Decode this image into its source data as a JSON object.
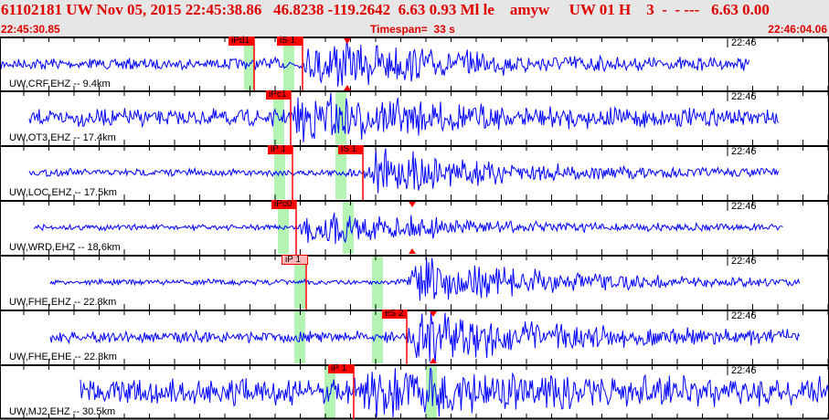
{
  "header": {
    "title": "61102181 UW Nov 05, 2015 22:45:38.86   46.8238 -119.2642  6.63 0.93 Ml le    amyw     UW 01 H    3  -  - ---   6.63 0.00",
    "start_time": "22:45:30.85",
    "timespan": "Timespan=  33 s",
    "end_time": "22:46:04.06"
  },
  "colors": {
    "trace": "#0000ff",
    "pick": "#ff0000",
    "window": "#b4f5b4",
    "header_text": "#e00000"
  },
  "panels": [
    {
      "channel": "UW,CRF,EHZ -- 9.4km",
      "minute_label": "22:46",
      "picks": [
        "iPd1",
        "iS 1"
      ]
    },
    {
      "channel": "UW,OT3,EHZ -- 17.4km",
      "minute_label": "22:46",
      "picks": [
        "iPc1"
      ]
    },
    {
      "channel": "UW,LOC,EHZ -- 17.5km",
      "minute_label": "22:46",
      "picks": [
        "iP 1",
        "iS 1"
      ]
    },
    {
      "channel": "UW,WRD,EHZ -- 18.6km",
      "minute_label": "22:46",
      "picks": [
        "iPc0"
      ]
    },
    {
      "channel": "UW,FHE,EHZ -- 22.8km",
      "minute_label": "22:46",
      "picks": [
        "iP 1"
      ]
    },
    {
      "channel": "UW,FHE,EHE -- 22.8km",
      "minute_label": "22:46",
      "picks": [
        "eS 2"
      ]
    },
    {
      "channel": "UW,MJ2,EHZ -- 30.5km",
      "minute_label": "22:46",
      "picks": [
        "iP 1"
      ]
    }
  ]
}
